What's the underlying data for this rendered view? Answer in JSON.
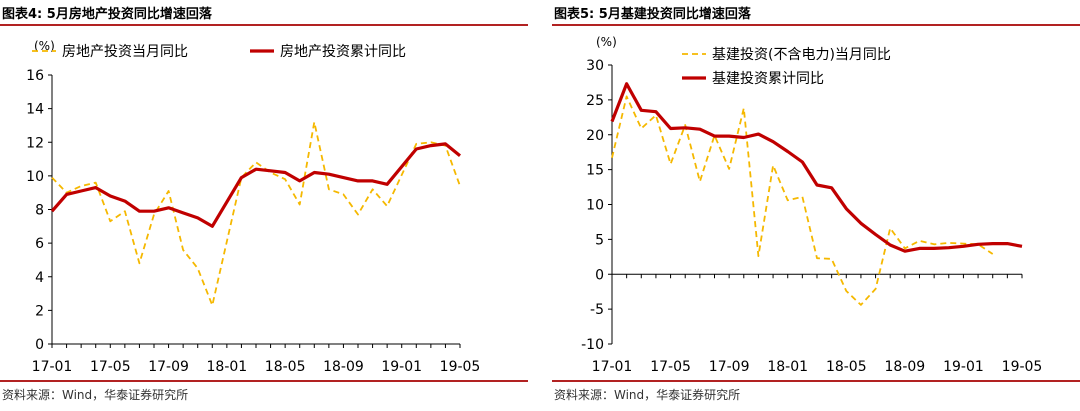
{
  "panels": [
    {
      "figure_title": "图表4:  5月房地产投资同比增速回落",
      "source": "资料来源：Wind，华泰证券研究所"
    },
    {
      "figure_title": "图表5:  5月基建投资同比增速回落",
      "source": "资料来源：Wind，华泰证券研究所"
    }
  ],
  "colors": {
    "monthly": "#f5b800",
    "cumulative": "#c00000",
    "rule": "#b22222"
  },
  "chart_data": [
    {
      "type": "line",
      "unit_label": "(%)",
      "x": [
        "17-01",
        "17-02",
        "17-03",
        "17-04",
        "17-05",
        "17-06",
        "17-07",
        "17-08",
        "17-09",
        "17-10",
        "17-11",
        "17-12",
        "18-01",
        "18-02",
        "18-03",
        "18-04",
        "18-05",
        "18-06",
        "18-07",
        "18-08",
        "18-09",
        "18-10",
        "18-11",
        "18-12",
        "19-01",
        "19-02",
        "19-03",
        "19-04",
        "19-05"
      ],
      "xticks": [
        "17-01",
        "17-05",
        "17-09",
        "18-01",
        "18-05",
        "18-09",
        "19-01",
        "19-05"
      ],
      "yticks": [
        0,
        2,
        4,
        6,
        8,
        10,
        12,
        14,
        16
      ],
      "ylim": [
        0,
        16
      ],
      "grid": false,
      "legend": "top",
      "series": [
        {
          "name": "房地产投资当月同比",
          "style": "dashed",
          "values": [
            9.9,
            9.0,
            9.4,
            9.6,
            7.3,
            7.9,
            4.8,
            7.7,
            9.1,
            5.6,
            4.5,
            2.3,
            null,
            9.9,
            10.8,
            10.2,
            9.8,
            8.3,
            13.2,
            9.2,
            8.9,
            7.7,
            9.2,
            8.2,
            null,
            11.9,
            12.0,
            11.8,
            9.4
          ]
        },
        {
          "name": "房地产投资累计同比",
          "style": "solid",
          "values": [
            7.9,
            8.9,
            9.1,
            9.3,
            8.8,
            8.5,
            7.9,
            7.9,
            8.1,
            7.8,
            7.5,
            7.0,
            null,
            9.9,
            10.4,
            10.3,
            10.2,
            9.7,
            10.2,
            10.1,
            9.9,
            9.7,
            9.7,
            9.5,
            null,
            11.6,
            11.8,
            11.9,
            11.2
          ]
        }
      ]
    },
    {
      "type": "line",
      "unit_label": "(%)",
      "x": [
        "17-01",
        "17-02",
        "17-03",
        "17-04",
        "17-05",
        "17-06",
        "17-07",
        "17-08",
        "17-09",
        "17-10",
        "17-11",
        "17-12",
        "18-01",
        "18-02",
        "18-03",
        "18-04",
        "18-05",
        "18-06",
        "18-07",
        "18-08",
        "18-09",
        "18-10",
        "18-11",
        "18-12",
        "19-01",
        "19-02",
        "19-03",
        "19-04",
        "19-05"
      ],
      "xticks": [
        "17-01",
        "17-05",
        "17-09",
        "18-01",
        "18-05",
        "18-09",
        "19-01",
        "19-05"
      ],
      "yticks": [
        -10,
        -5,
        0,
        5,
        10,
        15,
        20,
        25,
        30
      ],
      "ylim": [
        -10,
        30
      ],
      "grid": false,
      "legend": "top",
      "series": [
        {
          "name": "基建投资(不含电力)当月同比",
          "style": "dashed",
          "values": [
            16.7,
            25.5,
            20.9,
            22.8,
            15.8,
            21.4,
            13.3,
            19.9,
            15.1,
            23.8,
            2.6,
            15.6,
            10.6,
            11.1,
            2.3,
            2.2,
            -2.4,
            -4.4,
            -2.1,
            6.6,
            3.7,
            4.8,
            4.3,
            4.5,
            4.4,
            4.3,
            2.9,
            null,
            null
          ]
        },
        {
          "name": "基建投资累计同比",
          "style": "solid",
          "values": [
            21.9,
            27.3,
            23.5,
            23.3,
            20.9,
            21.0,
            20.8,
            19.8,
            19.8,
            19.6,
            20.1,
            19.0,
            17.6,
            16.1,
            12.8,
            12.4,
            9.4,
            7.3,
            5.7,
            4.2,
            3.3,
            3.7,
            3.7,
            3.8,
            4.0,
            4.3,
            4.4,
            4.4,
            4.0
          ]
        }
      ]
    }
  ]
}
